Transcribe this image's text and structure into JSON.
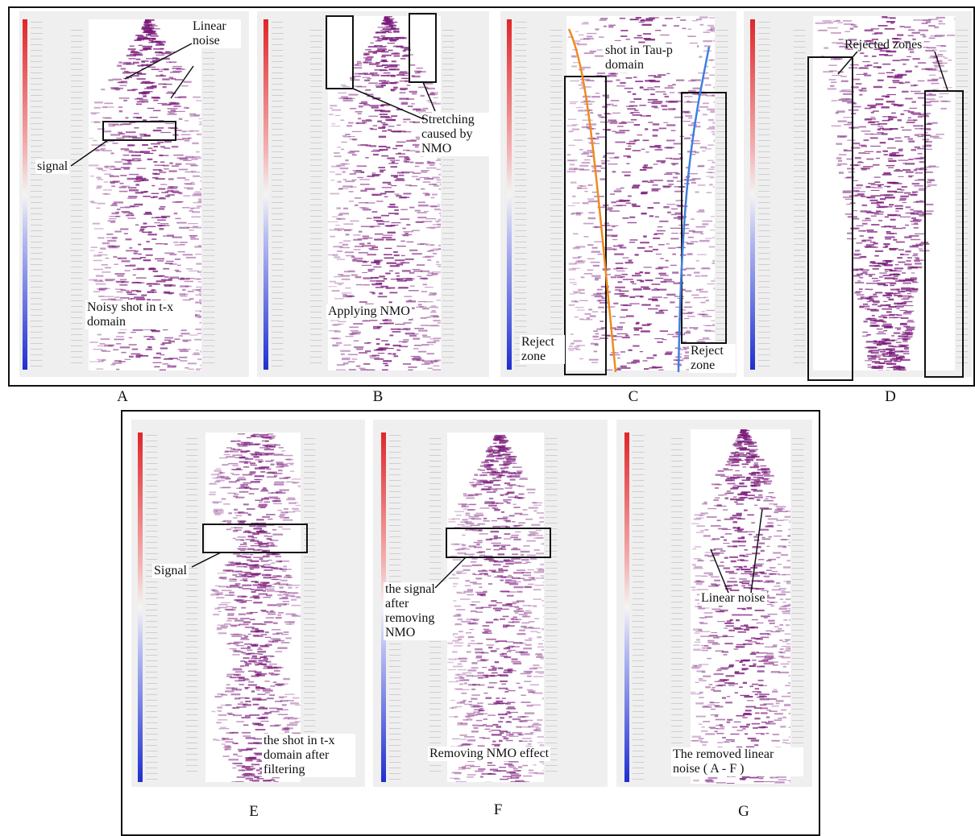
{
  "colors": {
    "signal": "#7a1a7a",
    "cbar_top": "#e0262a",
    "cbar_bottom": "#1f2fd0",
    "tau_left_curve": "#f08a1c",
    "tau_right_curve": "#3f7fe0"
  },
  "panels": {
    "A": {
      "letter": "A",
      "ann_linear_noise": "Linear noise",
      "ann_signal": "signal",
      "ann_caption": "Noisy shot in t-x domain"
    },
    "B": {
      "letter": "B",
      "ann_stretching": "Stretching caused by NMO",
      "ann_caption": "Applying NMO"
    },
    "C": {
      "letter": "C",
      "ann_shot": "shot in Tau-p domain",
      "ann_reject_left": "Reject zone",
      "ann_reject_right": "Reject zone"
    },
    "D": {
      "letter": "D",
      "ann_rejected": "Rejected zones"
    },
    "E": {
      "letter": "E",
      "ann_signal": "Signal",
      "ann_caption": "the shot in t-x domain after filtering"
    },
    "F": {
      "letter": "F",
      "ann_signal": "the signal after removing NMO",
      "ann_caption": "Removing NMO effect"
    },
    "G": {
      "letter": "G",
      "ann_linear_noise": "Linear noise",
      "ann_caption": "The removed linear noise ( A - F )"
    }
  }
}
